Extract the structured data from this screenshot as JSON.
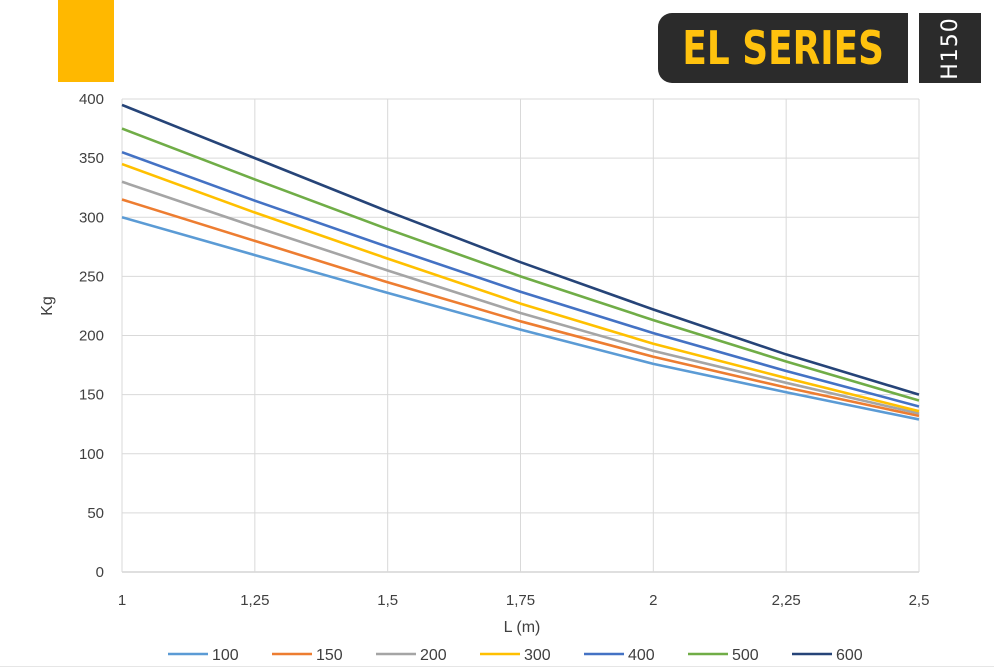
{
  "header": {
    "series_label": "EL SERIES",
    "model_label": "H150",
    "accent_color": "#ffb800",
    "badge_color": "#2b2b2b",
    "series_text_color": "#ffc20e"
  },
  "chart_data": {
    "type": "line",
    "xlabel": "L (m)",
    "ylabel": "Kg",
    "x": [
      1,
      1.25,
      1.5,
      1.75,
      2,
      2.25,
      2.5
    ],
    "x_tick_labels": [
      "1",
      "1,25",
      "1,5",
      "1,75",
      "2",
      "2,25",
      "2,5"
    ],
    "xlim": [
      1,
      2.5
    ],
    "ylim": [
      0,
      400
    ],
    "y_ticks": [
      0,
      50,
      100,
      150,
      200,
      250,
      300,
      350,
      400
    ],
    "grid": true,
    "legend": "bottom",
    "series": [
      {
        "name": "100",
        "color": "#5b9bd5",
        "values": [
          300,
          268,
          236,
          205,
          176,
          152,
          129
        ]
      },
      {
        "name": "150",
        "color": "#ed7d31",
        "values": [
          315,
          280,
          245,
          212,
          182,
          156,
          132
        ]
      },
      {
        "name": "200",
        "color": "#a5a5a5",
        "values": [
          330,
          292,
          255,
          219,
          187,
          160,
          134
        ]
      },
      {
        "name": "300",
        "color": "#ffc000",
        "values": [
          345,
          304,
          265,
          227,
          193,
          164,
          136
        ]
      },
      {
        "name": "400",
        "color": "#4472c4",
        "values": [
          355,
          314,
          275,
          237,
          202,
          170,
          140
        ]
      },
      {
        "name": "500",
        "color": "#70ad47",
        "values": [
          375,
          332,
          290,
          250,
          213,
          178,
          145
        ]
      },
      {
        "name": "600",
        "color": "#264478",
        "values": [
          395,
          350,
          305,
          262,
          222,
          184,
          150
        ]
      }
    ]
  }
}
